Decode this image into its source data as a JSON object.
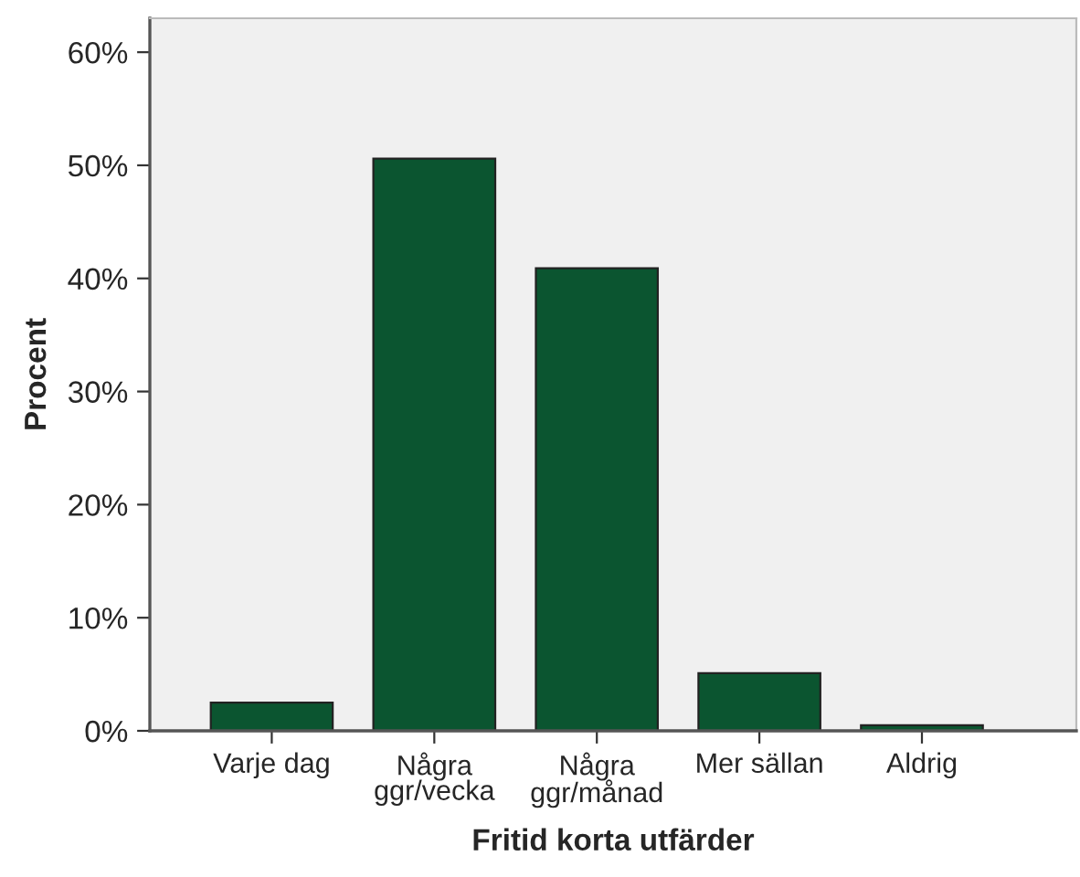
{
  "chart_data": {
    "type": "bar",
    "xlabel": "Fritid korta utfärder",
    "ylabel": "Procent",
    "categories": [
      "Varje dag",
      "Några\nggr/vecka",
      "Några\nggr/månad",
      "Mer sällan",
      "Aldrig"
    ],
    "values": [
      2.5,
      50.6,
      40.9,
      5.1,
      0.5
    ],
    "color": "#0b5530",
    "ylim": [
      0,
      63
    ],
    "yticks": [
      {
        "value": 0,
        "label": "0%"
      },
      {
        "value": 10,
        "label": "10%"
      },
      {
        "value": 20,
        "label": "20%"
      },
      {
        "value": 30,
        "label": "30%"
      },
      {
        "value": 40,
        "label": "40%"
      },
      {
        "value": 50,
        "label": "50%"
      },
      {
        "value": 60,
        "label": "60%"
      }
    ],
    "grid": false
  }
}
